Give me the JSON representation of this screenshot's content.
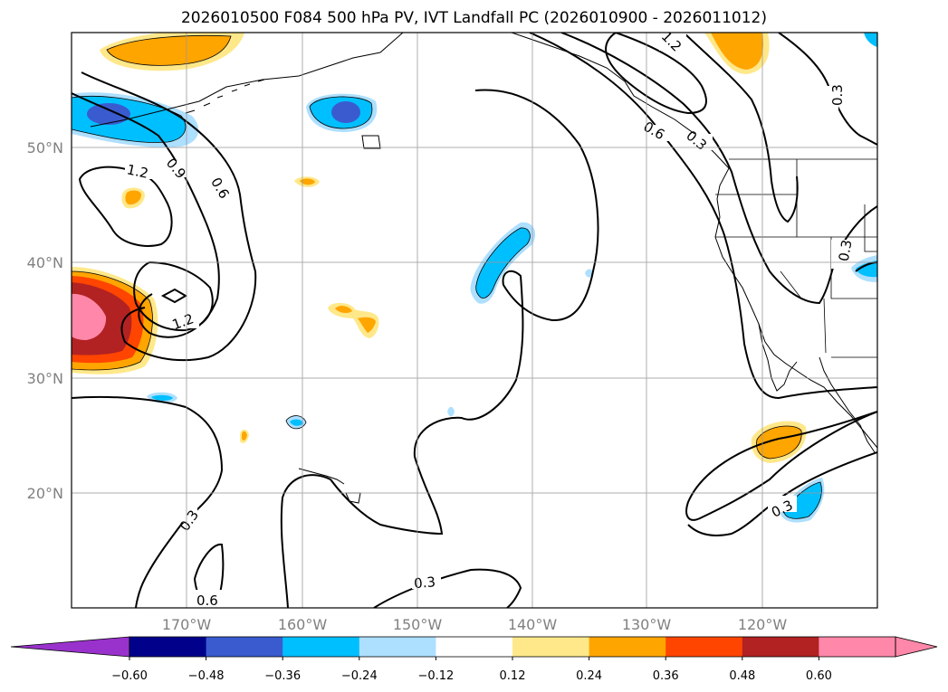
{
  "title": "2026010500 F084 500 hPa PV, IVT Landfall PC (2026010900 - 2026011012)",
  "map": {
    "lon_labels": [
      "170°W",
      "160°W",
      "150°W",
      "140°W",
      "130°W",
      "120°W"
    ],
    "lat_labels": [
      "50°N",
      "40°N",
      "30°N",
      "20°N"
    ]
  },
  "contour_labels": [
    "1.2",
    "0.9",
    "0.6",
    "1.2",
    "0.3",
    "0.6",
    "0.3",
    "0.3",
    "0.6",
    "0.3",
    "0.3",
    "0.3",
    "1.2",
    "0.3"
  ],
  "colorbar": {
    "ticks": [
      "−0.60",
      "−0.48",
      "−0.36",
      "−0.24",
      "−0.12",
      "0.12",
      "0.24",
      "0.36",
      "0.48",
      "0.60"
    ],
    "colors": [
      "#9932CC",
      "#00008B",
      "#3A5BCF",
      "#00BFFF",
      "#ADDFFF",
      "#FFFFFF",
      "#FFE88A",
      "#FFA500",
      "#FF4500",
      "#B22222",
      "#FF88AA",
      "#FF88AA"
    ]
  }
}
